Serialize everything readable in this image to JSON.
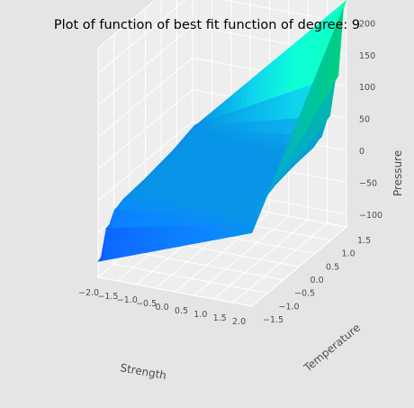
{
  "chart_data": {
    "type": "surface",
    "title": "Plot of function of best fit function of degree: 9",
    "xlabel": "Strength",
    "ylabel": "Temperature",
    "zlabel": "Pressure",
    "x_ticks": [
      "−2.0",
      "−1.5",
      "−1.0",
      "−0.5",
      "0.0",
      "0.5",
      "1.0",
      "1.5",
      "2.0"
    ],
    "y_ticks": [
      "−1.5",
      "−1.0",
      "−0.5",
      "0.0",
      "0.5",
      "1.0",
      "1.5"
    ],
    "z_ticks": [
      "−100",
      "−50",
      "0",
      "50",
      "100",
      "150",
      "200"
    ],
    "xlim": [
      -2.0,
      2.0
    ],
    "ylim": [
      -1.5,
      1.5
    ],
    "zlim": [
      -120,
      240
    ],
    "grid": true,
    "colormap": "winter",
    "corner_values": [
      {
        "x": -2.0,
        "y": -1.5,
        "z": -95
      },
      {
        "x": 2.0,
        "y": -1.5,
        "z": -5
      },
      {
        "x": 2.0,
        "y": 1.5,
        "z": 235
      },
      {
        "x": -2.0,
        "y": 1.5,
        "z": -10
      }
    ],
    "plateau_value": 5
  }
}
